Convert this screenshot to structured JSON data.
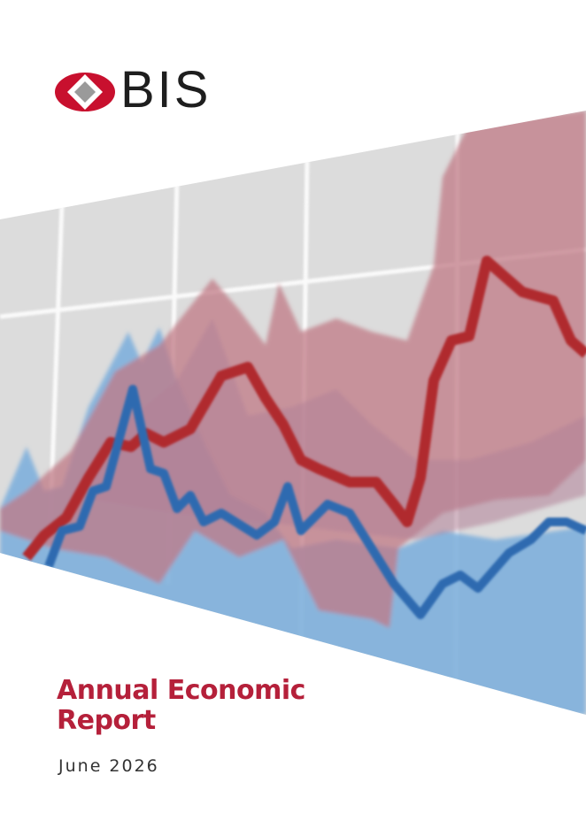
{
  "logo": {
    "text": "BIS"
  },
  "title": "Annual Economic Report",
  "date": "June 2026"
}
